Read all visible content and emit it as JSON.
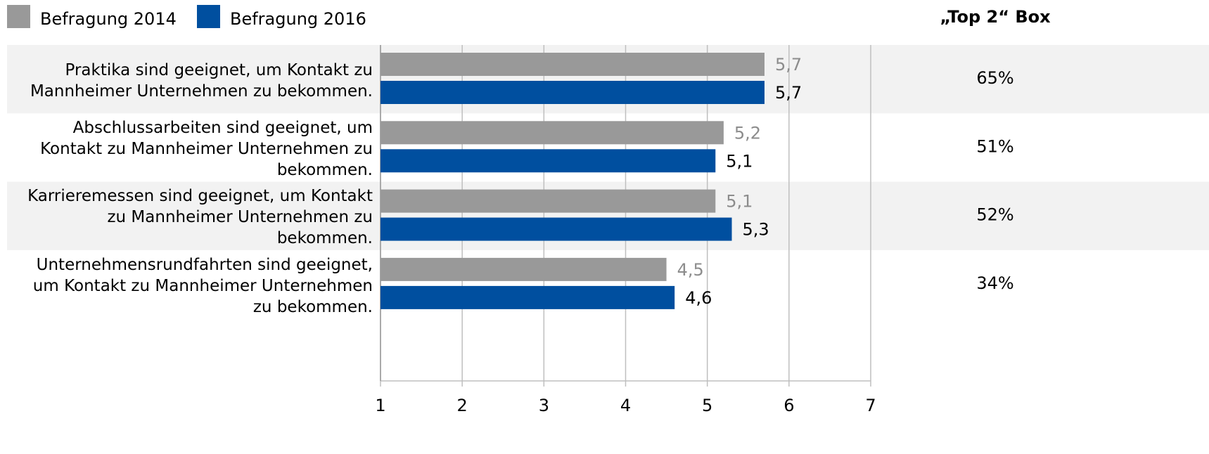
{
  "chart_data": {
    "type": "bar",
    "orientation": "horizontal",
    "categories": [
      "Praktika sind geeignet, um Kontakt zu Mannheimer Unternehmen zu bekommen.",
      "Abschlussarbeiten sind geeignet, um Kontakt zu Mannheimer Unternehmen zu bekommen.",
      "Karrieremessen sind geeignet, um Kontakt zu Mannheimer Unternehmen zu bekommen.",
      "Unternehmensrundfahrten sind geeignet, um Kontakt zu Mannheimer Unternehmen zu bekommen."
    ],
    "series": [
      {
        "name": "Befragung 2014",
        "color": "#999999",
        "label_color": "#8c8c8c",
        "values": [
          5.7,
          5.2,
          5.1,
          4.5
        ],
        "value_labels": [
          "5,7",
          "5,2",
          "5,1",
          "4,5"
        ]
      },
      {
        "name": "Befragung 2016",
        "color": "#004f9f",
        "label_color": "#000000",
        "values": [
          5.7,
          5.1,
          5.3,
          4.6
        ],
        "value_labels": [
          "5,7",
          "5,1",
          "5,3",
          "4,6"
        ]
      }
    ],
    "xlim": [
      1,
      7
    ],
    "xticks": [
      1,
      2,
      3,
      4,
      5,
      6,
      7
    ],
    "grid": true,
    "legend": "top-left",
    "top2": {
      "title": "„Top 2“ Box",
      "values": [
        65,
        51,
        52,
        34
      ],
      "value_labels": [
        "65%",
        "51%",
        "52%",
        "34%"
      ]
    }
  }
}
